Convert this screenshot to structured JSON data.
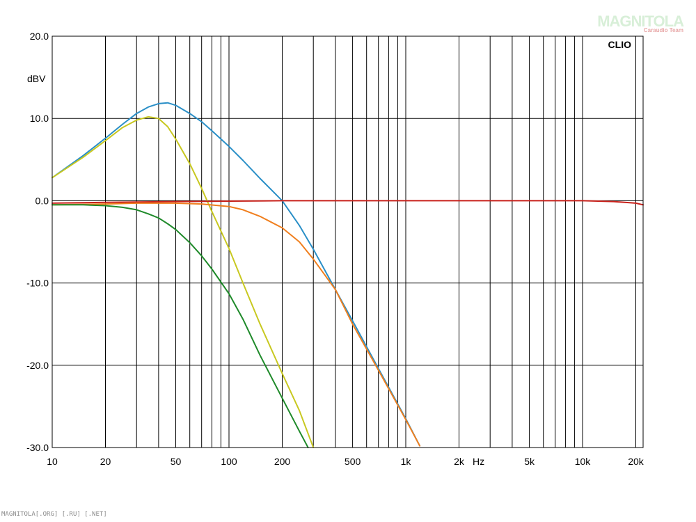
{
  "chart_data": {
    "type": "line",
    "brand_label": "CLIO",
    "ylabel": "dBV",
    "xunit": "Hz",
    "xscale": "log",
    "xlim": [
      10,
      22000
    ],
    "ylim": [
      -30,
      20
    ],
    "grid": true,
    "y_ticks": [
      "20.0",
      "10.0",
      "0.0",
      "-10.0",
      "-20.0",
      "-30.0"
    ],
    "y_tick_values": [
      20,
      10,
      0,
      -10,
      -20,
      -30
    ],
    "x_ticks": [
      "10",
      "20",
      "50",
      "100",
      "200",
      "500",
      "1k",
      "2k",
      "5k",
      "10k",
      "20k"
    ],
    "x_tick_values": [
      10,
      20,
      50,
      100,
      200,
      500,
      1000,
      2000,
      5000,
      10000,
      20000
    ],
    "series": [
      {
        "color": "#2a8fc7",
        "x": [
          10,
          15,
          20,
          25,
          30,
          35,
          40,
          45,
          50,
          60,
          70,
          80,
          100,
          120,
          150,
          200,
          250,
          300,
          400,
          500,
          700,
          1000,
          1200
        ],
        "y": [
          2.8,
          5.5,
          7.6,
          9.3,
          10.6,
          11.4,
          11.8,
          11.9,
          11.6,
          10.6,
          9.6,
          8.5,
          6.6,
          4.9,
          2.7,
          0.0,
          -3.0,
          -5.9,
          -10.8,
          -14.6,
          -20.4,
          -26.5,
          -29.8
        ]
      },
      {
        "color": "#c8c820",
        "x": [
          10,
          15,
          20,
          25,
          30,
          35,
          40,
          45,
          50,
          60,
          70,
          80,
          100,
          120,
          150,
          200,
          250,
          300
        ],
        "y": [
          2.8,
          5.3,
          7.3,
          8.9,
          9.8,
          10.2,
          10.0,
          9.0,
          7.5,
          4.5,
          1.5,
          -1.3,
          -5.8,
          -10.0,
          -15.0,
          -21.0,
          -25.5,
          -30.0
        ]
      },
      {
        "color": "#c8201a",
        "x": [
          10,
          20,
          50,
          100,
          200,
          500,
          1000,
          2000,
          5000,
          10000,
          15000,
          20000,
          22000
        ],
        "y": [
          -0.3,
          -0.2,
          -0.1,
          -0.05,
          0.0,
          0.0,
          0.0,
          0.0,
          0.0,
          0.0,
          -0.1,
          -0.3,
          -0.5
        ]
      },
      {
        "color": "#f07f1e",
        "x": [
          10,
          20,
          30,
          50,
          70,
          100,
          120,
          150,
          200,
          250,
          300,
          400,
          500,
          700,
          1000,
          1200
        ],
        "y": [
          -0.5,
          -0.4,
          -0.3,
          -0.3,
          -0.4,
          -0.7,
          -1.1,
          -1.9,
          -3.3,
          -5.0,
          -7.1,
          -10.8,
          -15.0,
          -20.6,
          -26.6,
          -29.8
        ]
      },
      {
        "color": "#1f8a2a",
        "x": [
          10,
          15,
          20,
          25,
          30,
          35,
          40,
          45,
          50,
          60,
          70,
          80,
          100,
          120,
          150,
          200,
          250,
          280
        ],
        "y": [
          -0.5,
          -0.5,
          -0.6,
          -0.8,
          -1.1,
          -1.6,
          -2.1,
          -2.8,
          -3.5,
          -5.1,
          -6.7,
          -8.3,
          -11.3,
          -14.4,
          -18.8,
          -24.0,
          -28.0,
          -30.0
        ]
      }
    ]
  },
  "watermark": {
    "logo": "MAGNITOLA",
    "sub": "Caraudio Team"
  },
  "footer": "MAGNITOLA[.ORG] [.RU] [.NET]"
}
